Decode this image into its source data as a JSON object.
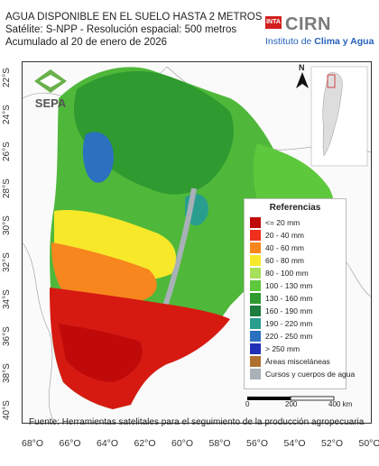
{
  "header": {
    "line1": "AGUA DISPONIBLE EN EL SUELO HASTA 2 METROS",
    "line2": "Satélite: S-NPP - Resolución espacial: 500 metros",
    "line3": "Acumulado al 20 de enero de 2026"
  },
  "logo": {
    "inta": "INTA",
    "cirn": "CIRN",
    "institute_prefix": "Instituto de ",
    "institute_bold": "Clima y Agua"
  },
  "sepa": {
    "label": "SEPA"
  },
  "north": {
    "label": "N"
  },
  "lat_labels": [
    "22°S",
    "24°S",
    "26°S",
    "28°S",
    "30°S",
    "32°S",
    "34°S",
    "36°S",
    "38°S",
    "40°S"
  ],
  "lon_labels": [
    "68°O",
    "66°O",
    "64°O",
    "62°O",
    "60°O",
    "58°O",
    "56°O",
    "54°O",
    "52°O",
    "50°O"
  ],
  "legend": {
    "title": "Referencias",
    "items": [
      {
        "label": "<= 20 mm",
        "color": "#c00a0a"
      },
      {
        "label": "20 - 40 mm",
        "color": "#f0301e"
      },
      {
        "label": "40 - 60 mm",
        "color": "#f7861e"
      },
      {
        "label": "60 - 80 mm",
        "color": "#f7e82a"
      },
      {
        "label": "80 - 100 mm",
        "color": "#a8e05a"
      },
      {
        "label": "100 - 130 mm",
        "color": "#5ec83c"
      },
      {
        "label": "130 - 160 mm",
        "color": "#2f9a2f"
      },
      {
        "label": "160 - 190 mm",
        "color": "#1e7c3e"
      },
      {
        "label": "190 - 220 mm",
        "color": "#2a9e8e"
      },
      {
        "label": "220 - 250 mm",
        "color": "#2c70c0"
      },
      {
        "label": "> 250 mm",
        "color": "#2230b8"
      },
      {
        "label": "Áreas misceláneas",
        "color": "#b07030"
      },
      {
        "label": "Cursos y cuerpos de agua",
        "color": "#a8b0b8"
      }
    ]
  },
  "scale": {
    "ticks": [
      "0",
      "200",
      "400 km"
    ]
  },
  "source": "Fuente: Herramientas satelitales para el seguimiento de la producción agropecuaria"
}
